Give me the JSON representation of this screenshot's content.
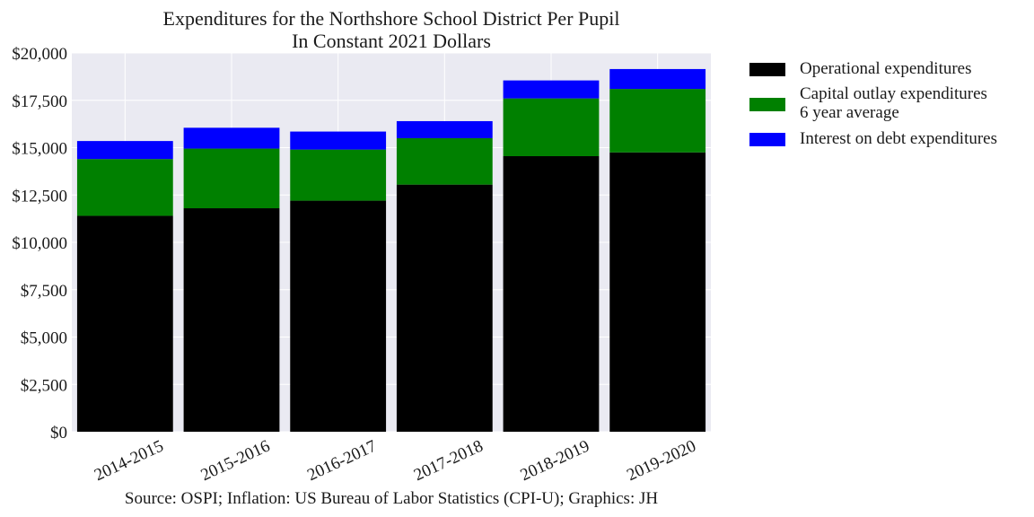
{
  "chart_data": {
    "type": "bar",
    "stacked": true,
    "title": "Expenditures for the Northshore School District Per Pupil",
    "subtitle": "In Constant 2021 Dollars",
    "xlabel": "",
    "ylabel": "",
    "categories": [
      "2014-2015",
      "2015-2016",
      "2016-2017",
      "2017-2018",
      "2018-2019",
      "2019-2020"
    ],
    "series": [
      {
        "name": "Operational expenditures",
        "color": "#000000",
        "values": [
          11400,
          11800,
          12200,
          13050,
          14550,
          14750
        ]
      },
      {
        "name": "Capital outlay expenditures\n6 year average",
        "color": "#008000",
        "values": [
          3000,
          3150,
          2700,
          2450,
          3050,
          3350
        ]
      },
      {
        "name": "Interest on debt expenditures",
        "color": "#0000ff",
        "values": [
          950,
          1100,
          950,
          900,
          950,
          1050
        ]
      }
    ],
    "ylim": [
      0,
      20000
    ],
    "yticks": [
      0,
      2500,
      5000,
      7500,
      10000,
      12500,
      15000,
      17500,
      20000
    ],
    "ytick_labels": [
      "$0",
      "$2,500",
      "$5,000",
      "$7,500",
      "$10,000",
      "$12,500",
      "$15,000",
      "$17,500",
      "$20,000"
    ],
    "grid": true,
    "legend_position": "outside-right",
    "source_note": "Source: OSPI; Inflation: US Bureau of Labor Statistics (CPI-U); Graphics: JH",
    "colors": {
      "plot_background": "#eaeaf2",
      "grid": "#ffffff"
    }
  }
}
